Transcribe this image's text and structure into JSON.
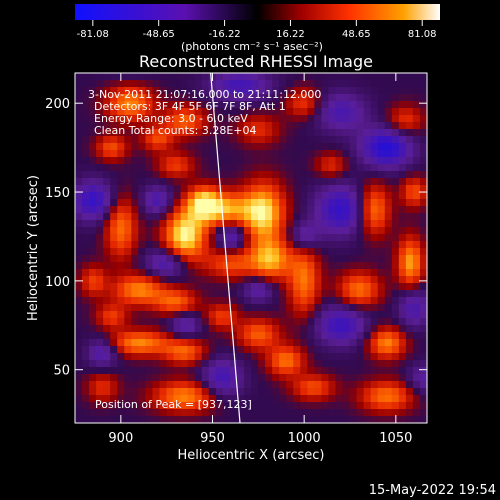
{
  "colorbar": {
    "ticks": [
      "-81.08",
      "-48.65",
      "-16.22",
      "16.22",
      "48.65",
      "81.08"
    ],
    "units": "(photons cm⁻² s⁻¹ asec⁻²)"
  },
  "annotations": {
    "time": "3-Nov-2011 21:07:16.000 to 21:11:12.000",
    "detectors": "Detectors: 3F 4F 5F 6F 7F 8F, Att 1",
    "energy": "Energy Range: 3.0 - 6.0 keV",
    "clean": "Clean    Total counts: 3.28E+04",
    "peak": "Position of Peak = [937,123]"
  },
  "footer": {
    "date": "15-May-2022 19:54"
  },
  "chart_data": {
    "type": "heatmap",
    "title": "Reconstructed RHESSI Image",
    "xlabel": "Heliocentric X (arcsec)",
    "ylabel": "Heliocentric Y (arcsec)",
    "xlim": [
      875,
      1067
    ],
    "ylim": [
      20,
      217
    ],
    "xticks": [
      900,
      950,
      1000,
      1050
    ],
    "yticks": [
      50,
      100,
      150,
      200
    ],
    "xtick_labels": [
      "900",
      "950",
      "1000",
      "1050"
    ],
    "ytick_labels": [
      "50",
      "100",
      "150",
      "200"
    ],
    "zlim": [
      -81.08,
      81.08
    ],
    "peak": [
      937,
      123
    ],
    "limb_line": [
      [
        949,
        217
      ],
      [
        965,
        20
      ]
    ],
    "blobs": [
      {
        "x": 935,
        "y": 125,
        "sx": 8,
        "sy": 10,
        "a": 80
      },
      {
        "x": 955,
        "y": 140,
        "sx": 12,
        "sy": 7,
        "a": 65
      },
      {
        "x": 978,
        "y": 138,
        "sx": 8,
        "sy": 12,
        "a": 72
      },
      {
        "x": 982,
        "y": 112,
        "sx": 8,
        "sy": 8,
        "a": 60
      },
      {
        "x": 960,
        "y": 110,
        "sx": 10,
        "sy": 6,
        "a": 40
      },
      {
        "x": 945,
        "y": 145,
        "sx": 6,
        "sy": 6,
        "a": 50
      },
      {
        "x": 930,
        "y": 165,
        "sx": 7,
        "sy": 5,
        "a": 35
      },
      {
        "x": 905,
        "y": 200,
        "sx": 9,
        "sy": 7,
        "a": 55
      },
      {
        "x": 935,
        "y": 190,
        "sx": 8,
        "sy": 6,
        "a": 45
      },
      {
        "x": 895,
        "y": 175,
        "sx": 6,
        "sy": 5,
        "a": 40
      },
      {
        "x": 920,
        "y": 180,
        "sx": 6,
        "sy": 5,
        "a": 38
      },
      {
        "x": 900,
        "y": 130,
        "sx": 6,
        "sy": 12,
        "a": 50
      },
      {
        "x": 910,
        "y": 95,
        "sx": 10,
        "sy": 6,
        "a": 55
      },
      {
        "x": 930,
        "y": 88,
        "sx": 8,
        "sy": 5,
        "a": 45
      },
      {
        "x": 895,
        "y": 80,
        "sx": 6,
        "sy": 5,
        "a": 35
      },
      {
        "x": 910,
        "y": 65,
        "sx": 12,
        "sy": 5,
        "a": 55
      },
      {
        "x": 935,
        "y": 60,
        "sx": 8,
        "sy": 5,
        "a": 45
      },
      {
        "x": 935,
        "y": 35,
        "sx": 12,
        "sy": 6,
        "a": 55
      },
      {
        "x": 975,
        "y": 70,
        "sx": 8,
        "sy": 6,
        "a": 45
      },
      {
        "x": 990,
        "y": 55,
        "sx": 7,
        "sy": 6,
        "a": 50
      },
      {
        "x": 1000,
        "y": 100,
        "sx": 6,
        "sy": 14,
        "a": 50
      },
      {
        "x": 1030,
        "y": 95,
        "sx": 8,
        "sy": 7,
        "a": 50
      },
      {
        "x": 1045,
        "y": 65,
        "sx": 7,
        "sy": 6,
        "a": 55
      },
      {
        "x": 1058,
        "y": 110,
        "sx": 5,
        "sy": 10,
        "a": 60
      },
      {
        "x": 1038,
        "y": 140,
        "sx": 6,
        "sy": 10,
        "a": 55
      },
      {
        "x": 1060,
        "y": 150,
        "sx": 5,
        "sy": 6,
        "a": 40
      },
      {
        "x": 1055,
        "y": 190,
        "sx": 7,
        "sy": 6,
        "a": 35
      },
      {
        "x": 1000,
        "y": 200,
        "sx": 7,
        "sy": 6,
        "a": 35
      },
      {
        "x": 1045,
        "y": 35,
        "sx": 10,
        "sy": 6,
        "a": 50
      },
      {
        "x": 1005,
        "y": 40,
        "sx": 8,
        "sy": 5,
        "a": 40
      },
      {
        "x": 975,
        "y": 185,
        "sx": 8,
        "sy": 6,
        "a": 30
      },
      {
        "x": 885,
        "y": 100,
        "sx": 5,
        "sy": 6,
        "a": 35
      },
      {
        "x": 890,
        "y": 40,
        "sx": 6,
        "sy": 6,
        "a": 30
      },
      {
        "x": 955,
        "y": 80,
        "sx": 6,
        "sy": 5,
        "a": 35
      },
      {
        "x": 1015,
        "y": 165,
        "sx": 6,
        "sy": 5,
        "a": 30
      },
      {
        "x": 960,
        "y": 125,
        "sx": 6,
        "sy": 6,
        "a": -45
      },
      {
        "x": 885,
        "y": 145,
        "sx": 8,
        "sy": 8,
        "a": -55
      },
      {
        "x": 905,
        "y": 225,
        "sx": 10,
        "sy": 8,
        "a": -20
      },
      {
        "x": 1020,
        "y": 140,
        "sx": 10,
        "sy": 10,
        "a": -55
      },
      {
        "x": 1045,
        "y": 175,
        "sx": 10,
        "sy": 8,
        "a": -65
      },
      {
        "x": 965,
        "y": 210,
        "sx": 12,
        "sy": 6,
        "a": -45
      },
      {
        "x": 925,
        "y": 110,
        "sx": 8,
        "sy": 6,
        "a": -45
      },
      {
        "x": 920,
        "y": 145,
        "sx": 6,
        "sy": 6,
        "a": -40
      },
      {
        "x": 1020,
        "y": 75,
        "sx": 10,
        "sy": 8,
        "a": -50
      },
      {
        "x": 1060,
        "y": 85,
        "sx": 6,
        "sy": 8,
        "a": -40
      },
      {
        "x": 955,
        "y": 45,
        "sx": 8,
        "sy": 8,
        "a": -45
      },
      {
        "x": 1020,
        "y": 195,
        "sx": 10,
        "sy": 8,
        "a": -40
      },
      {
        "x": 890,
        "y": 60,
        "sx": 6,
        "sy": 6,
        "a": -40
      },
      {
        "x": 1000,
        "y": 125,
        "sx": 6,
        "sy": 6,
        "a": -35
      },
      {
        "x": 975,
        "y": 95,
        "sx": 6,
        "sy": 5,
        "a": -35
      },
      {
        "x": 935,
        "y": 75,
        "sx": 6,
        "sy": 5,
        "a": -35
      },
      {
        "x": 1065,
        "y": 45,
        "sx": 6,
        "sy": 6,
        "a": -30
      }
    ]
  }
}
